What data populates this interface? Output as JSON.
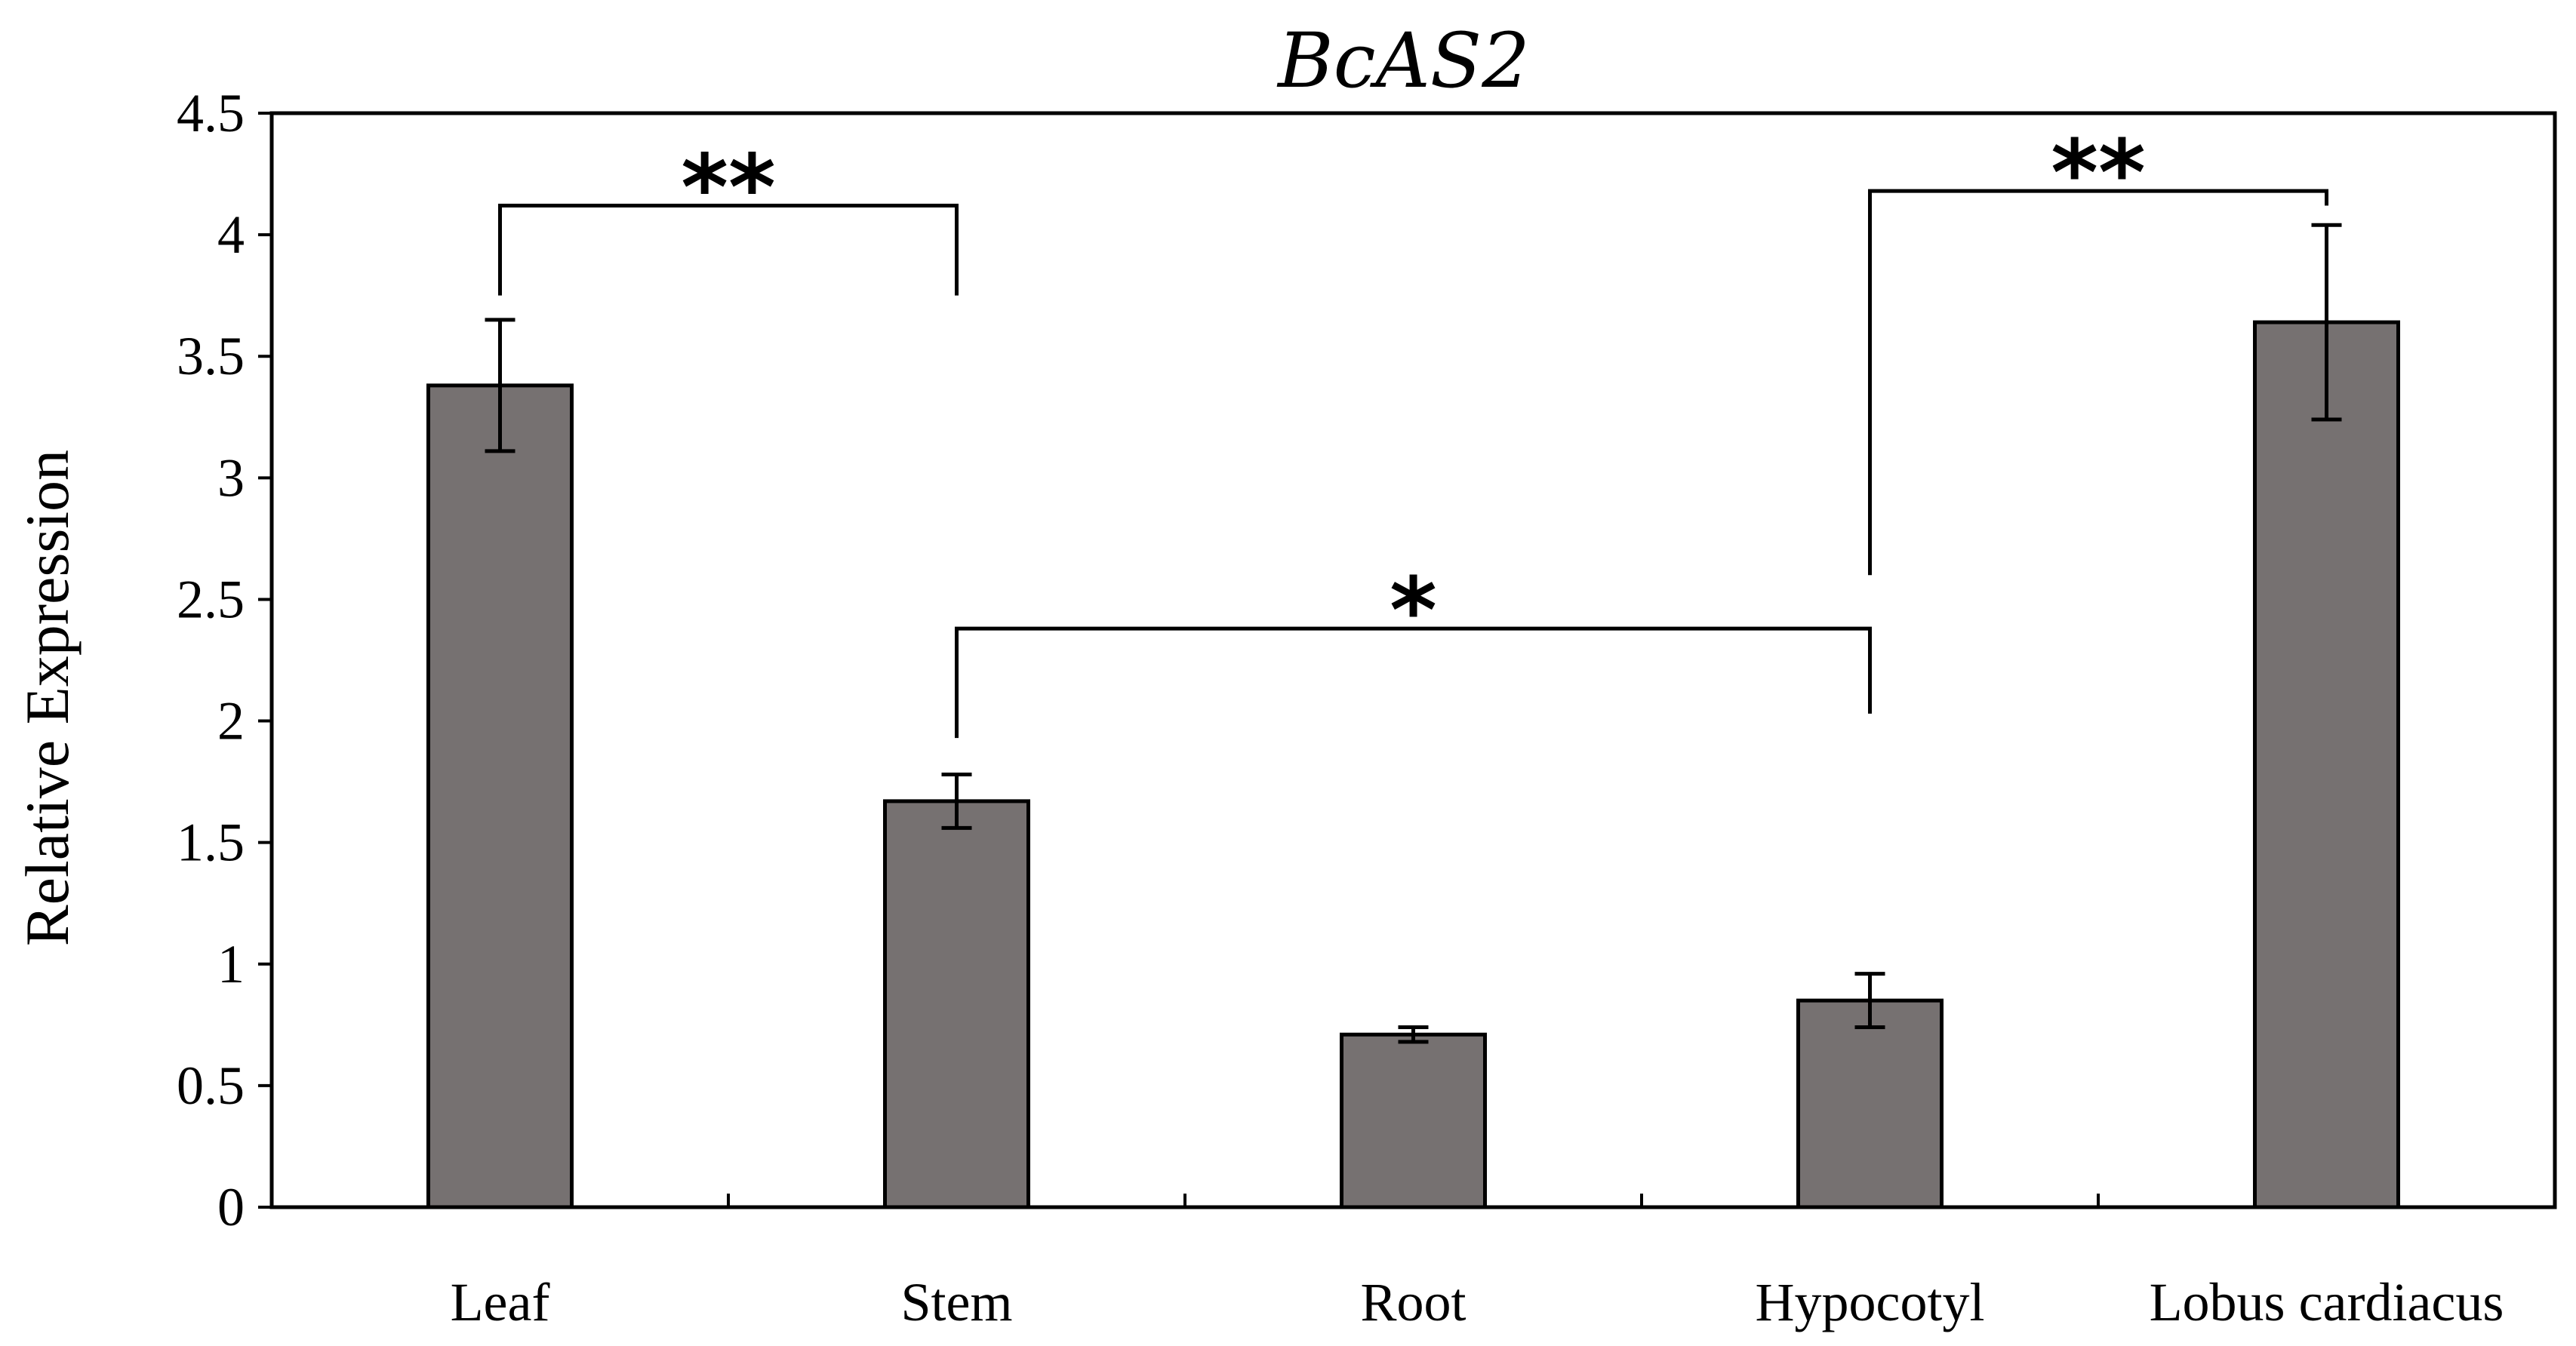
{
  "chart_data": {
    "type": "bar",
    "title": "BcAS2",
    "xlabel": "",
    "ylabel": "Relative Expression",
    "categories": [
      "Leaf",
      "Stem",
      "Root",
      "Hypocotyl",
      "Lobus cardiacus"
    ],
    "values": [
      3.38,
      1.67,
      0.71,
      0.85,
      3.64
    ],
    "errors": [
      0.27,
      0.11,
      0.03,
      0.11,
      0.4
    ],
    "ylim": [
      0,
      4.5
    ],
    "yticks": [
      "0",
      "0.5",
      "1",
      "1.5",
      "2",
      "2.5",
      "3",
      "3.5",
      "4",
      "4.5"
    ],
    "bar_color": "#767171",
    "grid": false,
    "significance": [
      {
        "from": "Leaf",
        "to": "Stem",
        "label": "**",
        "y": 4.12,
        "left_end": 3.75,
        "right_end": 3.75
      },
      {
        "from": "Stem",
        "to": "Hypocotyl",
        "label": "*",
        "y": 2.38,
        "left_end": 1.93,
        "right_end": 2.03
      },
      {
        "from": "Hypocotyl",
        "to": "Lobus cardiacus",
        "label": "**",
        "y": 4.18,
        "left_end": 2.6,
        "right_end": 4.12
      }
    ]
  }
}
